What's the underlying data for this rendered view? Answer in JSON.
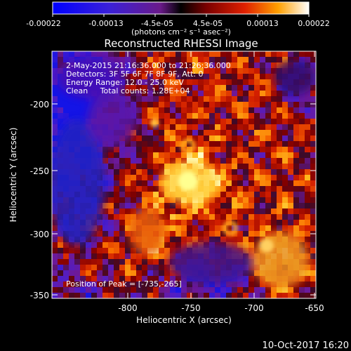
{
  "colorbar": {
    "tick_labels": [
      "-0.00022",
      "-0.00013",
      "-4.5e-05",
      "4.5e-05",
      "0.00013",
      "0.00022"
    ],
    "unit_label": "(photons cm⁻² s⁻¹ asec⁻²)"
  },
  "image": {
    "title": "Reconstructed RHESSI Image",
    "info_lines": [
      "2-May-2015 21:16:36.000 to 21:26:36.000",
      "Detectors: 3F 5F 6F 7F 8F 9F, Att: 0",
      "Energy Range: 12.0 - 25.0 keV",
      "Clean     Total counts: 1.28E+04"
    ],
    "peak_label": "Position of Peak = [-735,-265]"
  },
  "axes": {
    "xlabel": "Heliocentric X (arcsec)",
    "ylabel": "Heliocentric Y (arcsec)",
    "x_ticks": [
      "-800",
      "-750",
      "-700",
      "-650"
    ],
    "y_ticks": [
      "-200",
      "-250",
      "-300",
      "-350"
    ],
    "x_range": [
      -842,
      -650
    ],
    "y_range": [
      -353,
      -172
    ]
  },
  "footer": {
    "date": "10-Oct-2017 16:20"
  }
}
